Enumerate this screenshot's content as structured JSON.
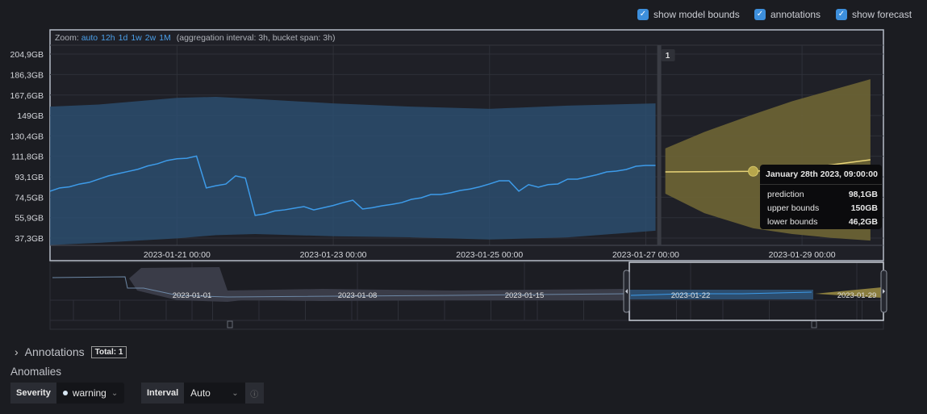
{
  "options": {
    "show_model_bounds": {
      "label": "show model bounds",
      "checked": true
    },
    "annotations": {
      "label": "annotations",
      "checked": true
    },
    "show_forecast": {
      "label": "show forecast",
      "checked": true
    }
  },
  "zoom": {
    "label": "Zoom:",
    "options": [
      "auto",
      "12h",
      "1d",
      "1w",
      "2w",
      "1M"
    ],
    "aggregation": "(aggregation interval: 3h, bucket span: 3h)"
  },
  "chart_data": {
    "type": "line",
    "xlim": [
      "2023-01-19T09:00",
      "2023-01-30T01:00"
    ],
    "ylim": [
      30.7,
      213
    ],
    "y_ticks": [
      "204,9GB",
      "186,3GB",
      "167,6GB",
      "149GB",
      "130,4GB",
      "111,8GB",
      "93,1GB",
      "74,5GB",
      "55,9GB",
      "37,3GB"
    ],
    "y_tick_values": [
      204.9,
      186.3,
      167.6,
      149,
      130.4,
      111.8,
      93.1,
      74.5,
      55.9,
      37.3
    ],
    "x_ticks": [
      "2023-01-21 00:00",
      "2023-01-23 00:00",
      "2023-01-25 00:00",
      "2023-01-27 00:00",
      "2023-01-29 00:00"
    ],
    "grid": true,
    "colors": {
      "actual": "#3d9be9",
      "bounds": "#2c4d6e",
      "forecast_line": "#e8d478",
      "forecast_band": "#6e6535"
    },
    "actual": {
      "x": [
        "2023-01-19T09:00",
        "2023-01-19T12:00",
        "2023-01-19T15:00",
        "2023-01-19T18:00",
        "2023-01-19T21:00",
        "2023-01-20T00:00",
        "2023-01-20T03:00",
        "2023-01-20T06:00",
        "2023-01-20T09:00",
        "2023-01-20T12:00",
        "2023-01-20T15:00",
        "2023-01-20T18:00",
        "2023-01-20T21:00",
        "2023-01-21T00:00",
        "2023-01-21T03:00",
        "2023-01-21T06:00",
        "2023-01-21T09:00",
        "2023-01-21T12:00",
        "2023-01-21T15:00",
        "2023-01-21T18:00",
        "2023-01-21T21:00",
        "2023-01-22T00:00",
        "2023-01-22T03:00",
        "2023-01-22T06:00",
        "2023-01-22T09:00",
        "2023-01-22T12:00",
        "2023-01-22T15:00",
        "2023-01-22T18:00",
        "2023-01-22T21:00",
        "2023-01-23T00:00",
        "2023-01-23T03:00",
        "2023-01-23T06:00",
        "2023-01-23T09:00",
        "2023-01-23T12:00",
        "2023-01-23T15:00",
        "2023-01-23T18:00",
        "2023-01-23T21:00",
        "2023-01-24T00:00",
        "2023-01-24T03:00",
        "2023-01-24T06:00",
        "2023-01-24T09:00",
        "2023-01-24T12:00",
        "2023-01-24T15:00",
        "2023-01-24T18:00",
        "2023-01-24T21:00",
        "2023-01-25T00:00",
        "2023-01-25T03:00",
        "2023-01-25T06:00",
        "2023-01-25T09:00",
        "2023-01-25T12:00",
        "2023-01-25T15:00",
        "2023-01-25T18:00",
        "2023-01-25T21:00",
        "2023-01-26T00:00",
        "2023-01-26T03:00",
        "2023-01-26T06:00",
        "2023-01-26T09:00",
        "2023-01-26T12:00",
        "2023-01-26T15:00",
        "2023-01-26T18:00",
        "2023-01-26T21:00",
        "2023-01-27T00:00",
        "2023-01-27T03:00"
      ],
      "values": [
        80,
        83,
        84,
        86.5,
        88,
        91,
        94,
        96,
        98,
        100,
        103,
        105,
        108,
        109.5,
        110,
        112,
        83,
        85,
        86.5,
        94,
        92,
        58,
        59.4,
        62,
        63,
        64.5,
        66,
        63,
        65,
        67,
        69.6,
        71.8,
        63.8,
        65,
        66.7,
        68,
        69.6,
        72.6,
        74,
        77,
        77,
        78.5,
        80.7,
        82,
        84,
        86.6,
        89.5,
        89.5,
        80,
        86,
        83.6,
        86,
        86.6,
        91,
        91,
        93,
        95,
        97.6,
        98.3,
        99.8,
        102.7,
        103.5,
        103.5
      ]
    },
    "bounds": {
      "x": [
        "2023-01-19T09:00",
        "2023-01-20T00:00",
        "2023-01-21T00:00",
        "2023-01-21T12:00",
        "2023-01-22T00:00",
        "2023-01-23T00:00",
        "2023-01-24T00:00",
        "2023-01-25T00:00",
        "2023-01-26T00:00",
        "2023-01-27T03:00"
      ],
      "upper": [
        157,
        159,
        165,
        166,
        164,
        160,
        157,
        155,
        158,
        160
      ],
      "lower": [
        31,
        33,
        37,
        40,
        41,
        39,
        38,
        36,
        38,
        44
      ]
    },
    "forecast": {
      "x": [
        "2023-01-27T06:00",
        "2023-01-27T18:00",
        "2023-01-28T09:00",
        "2023-01-28T21:00",
        "2023-01-29T09:00",
        "2023-01-29T21:00"
      ],
      "prediction": [
        97.6,
        97.8,
        98.1,
        100,
        104,
        108.6
      ],
      "upper": [
        119,
        134,
        150,
        162,
        172,
        182
      ],
      "lower": [
        77.7,
        60,
        46.2,
        41,
        37.5,
        35
      ]
    },
    "annotation": {
      "x": "2023-01-27T04:00",
      "label": "1"
    }
  },
  "tooltip": {
    "title": "January 28th 2023, 09:00:00",
    "rows": [
      {
        "label": "prediction",
        "value": "98,1GB"
      },
      {
        "label": "upper bounds",
        "value": "150GB"
      },
      {
        "label": "lower bounds",
        "value": "46,2GB"
      }
    ]
  },
  "context": {
    "x_ticks": [
      "2023-01-01",
      "2023-01-08",
      "2023-01-15",
      "2023-01-22",
      "2023-01-29"
    ]
  },
  "annotations_section": {
    "label": "Annotations",
    "total": "Total: 1"
  },
  "anomalies": {
    "title": "Anomalies",
    "severity_label": "Severity",
    "severity_value": "warning",
    "interval_label": "Interval",
    "interval_value": "Auto"
  }
}
